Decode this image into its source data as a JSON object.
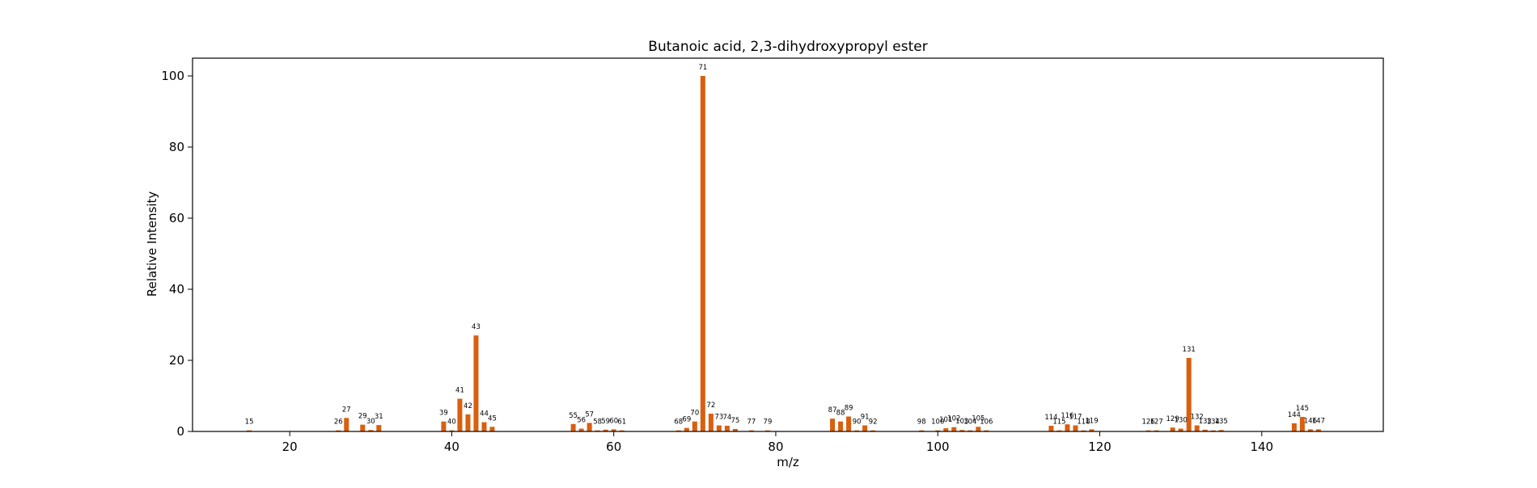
{
  "chart_data": {
    "type": "bar",
    "title": "Butanoic acid, 2,3-dihydroxypropyl ester",
    "xlabel": "m/z",
    "ylabel": "Relative Intensity",
    "xlim": [
      8,
      155
    ],
    "ylim": [
      0,
      105
    ],
    "xticks": [
      20,
      40,
      60,
      80,
      100,
      120,
      140
    ],
    "yticks": [
      0,
      20,
      40,
      60,
      80,
      100
    ],
    "grid": false,
    "bar_color": "#d95f0e",
    "x": [
      15,
      26,
      27,
      29,
      30,
      31,
      39,
      40,
      41,
      42,
      43,
      44,
      45,
      55,
      56,
      57,
      58,
      59,
      60,
      61,
      68,
      69,
      70,
      71,
      72,
      73,
      74,
      75,
      77,
      79,
      87,
      88,
      89,
      90,
      91,
      92,
      98,
      100,
      101,
      102,
      103,
      104,
      105,
      106,
      114,
      115,
      116,
      117,
      118,
      119,
      126,
      127,
      129,
      130,
      131,
      132,
      133,
      134,
      135,
      144,
      145,
      146,
      147
    ],
    "values": [
      0.3,
      0.3,
      3.8,
      1.9,
      0.4,
      1.8,
      2.8,
      0.3,
      9.2,
      4.8,
      27.0,
      2.6,
      1.3,
      2.1,
      0.8,
      2.4,
      0.3,
      0.5,
      0.6,
      0.3,
      0.3,
      1.0,
      2.8,
      100.0,
      5.0,
      1.7,
      1.6,
      0.7,
      0.3,
      0.3,
      3.6,
      2.8,
      4.2,
      0.3,
      1.7,
      0.3,
      0.3,
      0.3,
      0.9,
      1.2,
      0.4,
      0.3,
      1.3,
      0.3,
      1.6,
      0.3,
      2.0,
      1.7,
      0.3,
      0.6,
      0.3,
      0.3,
      1.1,
      0.8,
      20.7,
      1.7,
      0.5,
      0.3,
      0.4,
      2.3,
      4.1,
      0.6,
      0.6
    ],
    "labels": [
      "15",
      "26",
      "27",
      "29",
      "30",
      "31",
      "39",
      "40",
      "41",
      "42",
      "43",
      "44",
      "45",
      "55",
      "56",
      "57",
      "58",
      "59",
      "60",
      "61",
      "68",
      "69",
      "70",
      "71",
      "72",
      "73",
      "74",
      "75",
      "77",
      "79",
      "87",
      "88",
      "89",
      "90",
      "91",
      "92",
      "98",
      "100",
      "101",
      "102",
      "103",
      "104",
      "105",
      "106",
      "114",
      "115",
      "116",
      "117",
      "118",
      "119",
      "126",
      "127",
      "129",
      "130",
      "131",
      "132",
      "133",
      "134",
      "135",
      "144",
      "145",
      "146",
      "147"
    ]
  }
}
